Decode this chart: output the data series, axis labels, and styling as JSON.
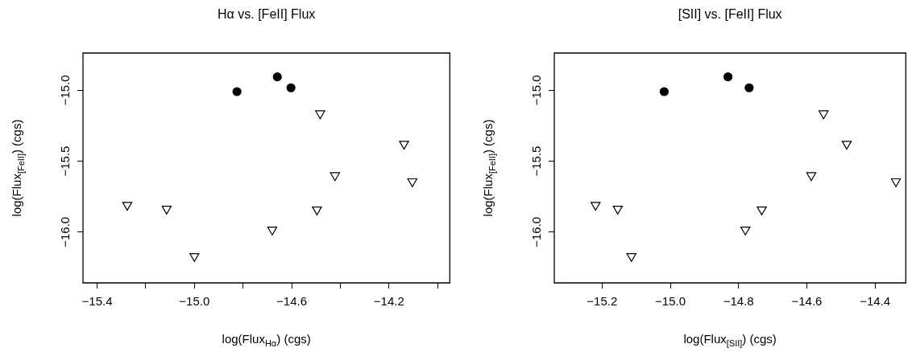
{
  "chart_data": [
    {
      "type": "scatter",
      "title": "Hα vs. [FeII] Flux",
      "xlabel": "log(Flux$_{Hα}$) (cgs)",
      "ylabel": "log(Flux$_{[FeII]}$) (cgs)",
      "xlim": [
        -15.458,
        -13.95
      ],
      "ylim": [
        -16.358,
        -14.738
      ],
      "xticks": [
        {
          "value": -15.4,
          "label": "−15.4"
        },
        {
          "value": -15.2,
          "label": null
        },
        {
          "value": -15.0,
          "label": "−15.0"
        },
        {
          "value": -14.8,
          "label": null
        },
        {
          "value": -14.6,
          "label": "−14.6"
        },
        {
          "value": -14.4,
          "label": null
        },
        {
          "value": -14.2,
          "label": "−14.2"
        },
        {
          "value": -14.0,
          "label": null
        }
      ],
      "yticks": [
        {
          "value": -16.0,
          "label": "−16.0"
        },
        {
          "value": -15.5,
          "label": "−15.5"
        },
        {
          "value": -15.0,
          "label": "−15.0"
        }
      ],
      "grid": false,
      "series": [
        {
          "color": "#000000",
          "marker": "circle",
          "x": [
            -14.825,
            -14.659,
            -14.603
          ],
          "values": [
            -15.01,
            -14.906,
            -14.983
          ]
        },
        {
          "color": "#000000",
          "marker": "triangle",
          "x": [
            -15.276,
            -15.114,
            -15.0,
            -14.68,
            -14.496,
            -14.483,
            -14.422,
            -14.138,
            -14.104
          ],
          "values": [
            -15.809,
            -15.836,
            -16.17,
            -15.983,
            -15.842,
            -15.164,
            -15.6,
            -15.379,
            -15.643
          ]
        }
      ]
    },
    {
      "type": "scatter",
      "title": "[SII] vs. [FeII] Flux",
      "xlabel": "log(Flux$_{[SII]}$) (cgs)",
      "ylabel": "log(Flux$_{[FeII]}$) (cgs)",
      "xlim": [
        -15.34,
        -14.31
      ],
      "ylim": [
        -16.358,
        -14.738
      ],
      "xticks": [
        {
          "value": -15.2,
          "label": "−15.2"
        },
        {
          "value": -15.0,
          "label": "−15.0"
        },
        {
          "value": -14.8,
          "label": "−14.8"
        },
        {
          "value": -14.6,
          "label": "−14.6"
        },
        {
          "value": -14.4,
          "label": "−14.4"
        }
      ],
      "yticks": [
        {
          "value": -16.0,
          "label": "−16.0"
        },
        {
          "value": -15.5,
          "label": "−15.5"
        },
        {
          "value": -15.0,
          "label": "−15.0"
        }
      ],
      "grid": false,
      "series": [
        {
          "color": "#000000",
          "marker": "circle",
          "x": [
            -15.018,
            -14.831,
            -14.769
          ],
          "values": [
            -15.01,
            -14.906,
            -14.983
          ]
        },
        {
          "color": "#000000",
          "marker": "triangle",
          "x": [
            -15.219,
            -15.154,
            -15.114,
            -14.78,
            -14.732,
            -14.551,
            -14.587,
            -14.483,
            -14.339
          ],
          "values": [
            -15.809,
            -15.836,
            -16.17,
            -15.983,
            -15.842,
            -15.164,
            -15.6,
            -15.379,
            -15.643
          ]
        }
      ]
    }
  ]
}
